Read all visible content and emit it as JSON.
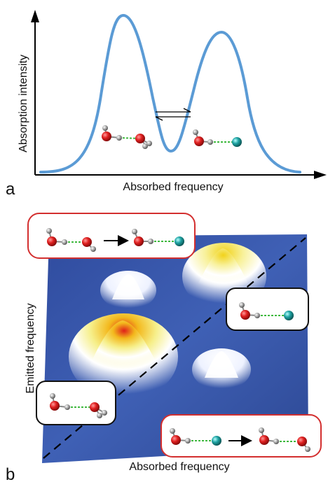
{
  "panel_a": {
    "panel_label": "a",
    "y_axis_label": "Absorption intensity",
    "x_axis_label": "Absorbed frequency",
    "curve_color": "#5b9bd5"
  },
  "panel_b": {
    "panel_label": "b",
    "y_axis_label": "Emitted frequency",
    "x_axis_label": "Absorbed frequency",
    "plane_color": "#3b57a8",
    "cross_peak_box_color": "#d32f2f",
    "diagonal_peak_box_color": "#111111"
  },
  "atoms": {
    "oxygen": "#d61f1f",
    "hydrogen": "#9a9a9a",
    "anion": "#1fa3a3",
    "hbond": "#3fb93f"
  }
}
